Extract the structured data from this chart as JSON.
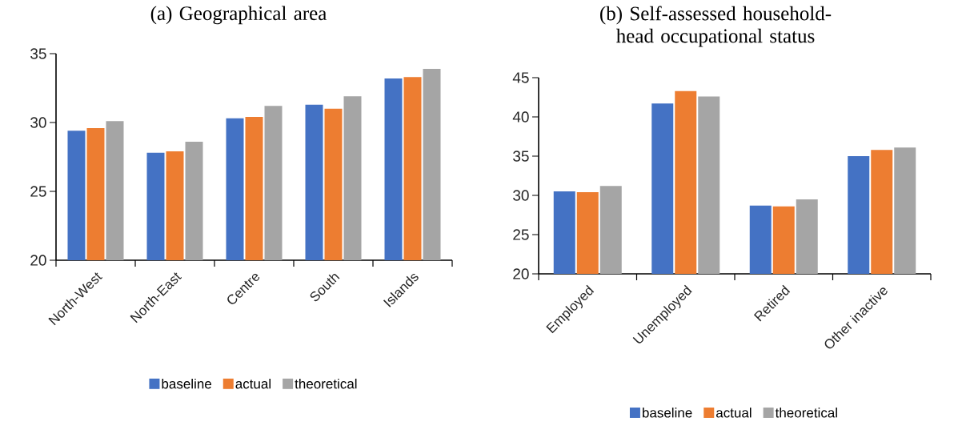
{
  "chart_data": [
    {
      "type": "bar",
      "title": "(a) Geographical area",
      "categories": [
        "North-West",
        "North-East",
        "Centre",
        "South",
        "Islands"
      ],
      "series": [
        {
          "name": "baseline",
          "color": "#4472c4",
          "values": [
            29.4,
            27.8,
            30.3,
            31.3,
            33.2
          ]
        },
        {
          "name": "actual",
          "color": "#ed7d31",
          "values": [
            29.6,
            27.9,
            30.4,
            31.0,
            33.3
          ]
        },
        {
          "name": "theoretical",
          "color": "#a5a5a5",
          "values": [
            30.1,
            28.6,
            31.2,
            31.9,
            33.9
          ]
        }
      ],
      "ylim": [
        20,
        35
      ],
      "yticks": [
        20,
        25,
        30,
        35
      ],
      "legend": "bottom"
    },
    {
      "type": "bar",
      "title": "(b) Self-assessed household-head occupational status",
      "categories": [
        "Employed",
        "Unemployed",
        "Retired",
        "Other inactive"
      ],
      "series": [
        {
          "name": "baseline",
          "color": "#4472c4",
          "values": [
            30.5,
            41.7,
            28.7,
            35.0
          ]
        },
        {
          "name": "actual",
          "color": "#ed7d31",
          "values": [
            30.4,
            43.3,
            28.6,
            35.8
          ]
        },
        {
          "name": "theoretical",
          "color": "#a5a5a5",
          "values": [
            31.2,
            42.6,
            29.5,
            36.1
          ]
        }
      ],
      "ylim": [
        20,
        45
      ],
      "yticks": [
        20,
        25,
        30,
        35,
        40,
        45
      ],
      "legend": "bottom"
    }
  ]
}
